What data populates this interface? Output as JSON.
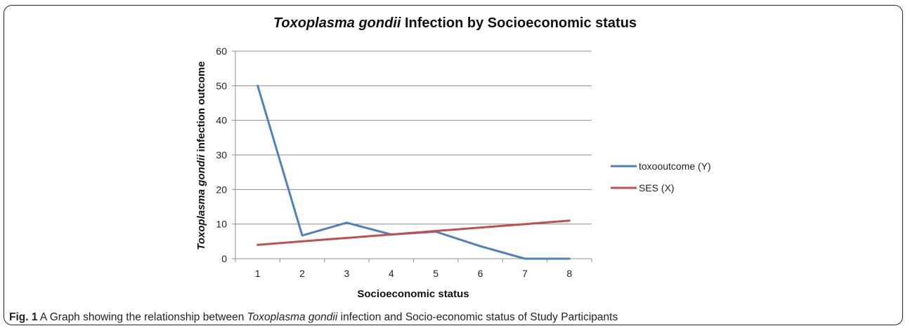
{
  "chart_data": {
    "type": "line",
    "title_italic": "Toxoplasma gondii",
    "title_rest": " Infection by Socioeconomic status",
    "xlabel": "Socioeconomic status",
    "ylabel_italic": "Toxoplasma gondii",
    "ylabel_rest": " infection outcome",
    "categories": [
      "1",
      "2",
      "3",
      "4",
      "5",
      "6",
      "7",
      "8"
    ],
    "y_ticks": [
      "0",
      "10",
      "20",
      "30",
      "40",
      "50",
      "60"
    ],
    "ylim": [
      0,
      60
    ],
    "grid": true,
    "legend_position": "right",
    "series": [
      {
        "name": "toxooutcome (Y)",
        "color": "#4F81BD",
        "values": [
          50,
          6.7,
          10.4,
          7,
          7.8,
          3.6,
          0,
          0
        ]
      },
      {
        "name": "SES (X)",
        "color": "#C0504D",
        "values": [
          4,
          5,
          6,
          7,
          8,
          9,
          10,
          11
        ]
      }
    ]
  },
  "caption": {
    "fig_label": "Fig. 1",
    "text_a": " A Graph showing the relationship between ",
    "text_italic": "Toxoplasma gondii",
    "text_b": " infection and Socio-economic status of Study Participants"
  }
}
